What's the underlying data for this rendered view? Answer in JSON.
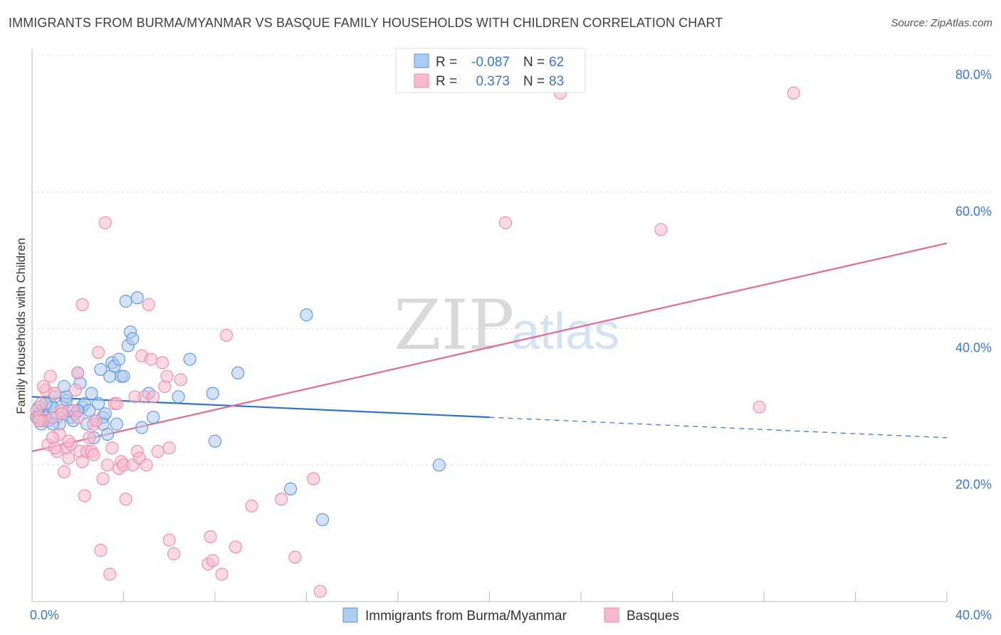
{
  "title": "IMMIGRANTS FROM BURMA/MYANMAR VS BASQUE FAMILY HOUSEHOLDS WITH CHILDREN CORRELATION CHART",
  "source": "Source: ZipAtlas.com",
  "watermark": {
    "zip": "ZIP",
    "atlas": "atlas"
  },
  "legend_top": {
    "rows": [
      {
        "r_label": "R =",
        "r_value": "-0.087",
        "n_label": "N =",
        "n_value": "62",
        "color": "#aecbf0"
      },
      {
        "r_label": "R =",
        "r_value": "0.373",
        "n_label": "N =",
        "n_value": "83",
        "color": "#f7b9cc"
      }
    ]
  },
  "chart_data": {
    "type": "scatter",
    "title": "IMMIGRANTS FROM BURMA/MYANMAR VS BASQUE FAMILY HOUSEHOLDS WITH CHILDREN CORRELATION CHART",
    "xlabel": "",
    "ylabel": "Family Households with Children",
    "xlim": [
      0,
      40
    ],
    "ylim": [
      0,
      80
    ],
    "x_ticks": [
      0,
      40
    ],
    "x_tick_labels": [
      "0.0%",
      "40.0%"
    ],
    "y_ticks": [
      20,
      40,
      60,
      80
    ],
    "y_tick_labels": [
      "20.0%",
      "40.0%",
      "60.0%",
      "80.0%"
    ],
    "grid": true,
    "legend_position": "bottom",
    "series": [
      {
        "name": "Immigrants from Burma/Myanmar",
        "color": "#5b93d8",
        "fill": "#aecbf0",
        "r": -0.087,
        "n": 62,
        "trend": {
          "x0": 0,
          "y0": 30.0,
          "x1": 20,
          "y1": 27.0,
          "x_dash_end": 40,
          "y_dash_end": 24.0,
          "color": "#2f72c9"
        },
        "points": [
          [
            0.3,
            27.5
          ],
          [
            0.4,
            26
          ],
          [
            0.5,
            28
          ],
          [
            0.6,
            27
          ],
          [
            0.7,
            26.5
          ],
          [
            0.8,
            29
          ],
          [
            0.9,
            28.5
          ],
          [
            1.0,
            30
          ],
          [
            1.1,
            27
          ],
          [
            1.2,
            26
          ],
          [
            1.3,
            28
          ],
          [
            1.4,
            31.5
          ],
          [
            1.5,
            29.5
          ],
          [
            1.6,
            28
          ],
          [
            1.7,
            27
          ],
          [
            1.8,
            26.5
          ],
          [
            1.9,
            27.5
          ],
          [
            2.0,
            33.5
          ],
          [
            2.1,
            32
          ],
          [
            2.2,
            28.5
          ],
          [
            2.3,
            29
          ],
          [
            2.4,
            26
          ],
          [
            2.5,
            28
          ],
          [
            2.6,
            30.5
          ],
          [
            2.7,
            24
          ],
          [
            2.8,
            26.5
          ],
          [
            2.9,
            29
          ],
          [
            3.0,
            34
          ],
          [
            3.1,
            27
          ],
          [
            3.2,
            27.5
          ],
          [
            3.3,
            24.5
          ],
          [
            3.4,
            33
          ],
          [
            3.5,
            35
          ],
          [
            3.6,
            34.5
          ],
          [
            3.7,
            26
          ],
          [
            3.8,
            35.5
          ],
          [
            3.9,
            33
          ],
          [
            4.0,
            33
          ],
          [
            4.1,
            44
          ],
          [
            4.2,
            37.5
          ],
          [
            4.3,
            39.5
          ],
          [
            4.4,
            38.5
          ],
          [
            4.6,
            44.5
          ],
          [
            4.8,
            25.5
          ],
          [
            5.1,
            30.5
          ],
          [
            5.3,
            27
          ],
          [
            6.4,
            30
          ],
          [
            6.9,
            35.5
          ],
          [
            7.9,
            30.5
          ],
          [
            8.0,
            23.5
          ],
          [
            9.0,
            33.5
          ],
          [
            11.3,
            16.5
          ],
          [
            12.0,
            42
          ],
          [
            12.7,
            12
          ],
          [
            17.8,
            20
          ],
          [
            0.2,
            27
          ],
          [
            0.3,
            28.5
          ],
          [
            0.6,
            29
          ],
          [
            0.9,
            26
          ],
          [
            1.5,
            30
          ],
          [
            2.0,
            28
          ],
          [
            3.1,
            26
          ]
        ]
      },
      {
        "name": "Basques",
        "color": "#e98aa8",
        "fill": "#f7b9cc",
        "r": 0.373,
        "n": 83,
        "trend": {
          "x0": 0,
          "y0": 22.0,
          "x1": 40,
          "y1": 52.5,
          "color": "#e06b94"
        },
        "points": [
          [
            0.2,
            28
          ],
          [
            0.3,
            27
          ],
          [
            0.4,
            29
          ],
          [
            0.5,
            26.5
          ],
          [
            0.6,
            31
          ],
          [
            0.7,
            23
          ],
          [
            0.8,
            33
          ],
          [
            0.9,
            27
          ],
          [
            1.0,
            30.5
          ],
          [
            1.1,
            22
          ],
          [
            1.2,
            24.5
          ],
          [
            1.3,
            28
          ],
          [
            1.4,
            19
          ],
          [
            1.5,
            22.5
          ],
          [
            1.6,
            21
          ],
          [
            1.7,
            23
          ],
          [
            1.8,
            28
          ],
          [
            1.9,
            31
          ],
          [
            2.0,
            33.5
          ],
          [
            2.1,
            22
          ],
          [
            2.2,
            20.5
          ],
          [
            2.3,
            15.5
          ],
          [
            2.4,
            22
          ],
          [
            2.5,
            24
          ],
          [
            2.6,
            22
          ],
          [
            2.7,
            26
          ],
          [
            2.8,
            26.5
          ],
          [
            2.9,
            36.5
          ],
          [
            3.0,
            7.5
          ],
          [
            3.1,
            18
          ],
          [
            3.2,
            55.5
          ],
          [
            3.3,
            20
          ],
          [
            3.4,
            4
          ],
          [
            3.5,
            22.5
          ],
          [
            3.6,
            29
          ],
          [
            3.8,
            19.5
          ],
          [
            3.9,
            20.5
          ],
          [
            4.0,
            20
          ],
          [
            4.1,
            15
          ],
          [
            4.4,
            20
          ],
          [
            4.6,
            22
          ],
          [
            4.7,
            21
          ],
          [
            4.8,
            36
          ],
          [
            4.9,
            30
          ],
          [
            5.0,
            20
          ],
          [
            5.1,
            43.5
          ],
          [
            5.2,
            35.5
          ],
          [
            5.3,
            30
          ],
          [
            5.5,
            22
          ],
          [
            5.7,
            35
          ],
          [
            5.8,
            31.5
          ],
          [
            5.9,
            33
          ],
          [
            6.0,
            22.5
          ],
          [
            6.0,
            9
          ],
          [
            6.2,
            7
          ],
          [
            6.5,
            32.5
          ],
          [
            7.7,
            5.5
          ],
          [
            7.8,
            9.5
          ],
          [
            7.9,
            6
          ],
          [
            8.3,
            4
          ],
          [
            8.5,
            39
          ],
          [
            8.9,
            8
          ],
          [
            9.6,
            14
          ],
          [
            10.9,
            15
          ],
          [
            11.5,
            6.5
          ],
          [
            12.3,
            18
          ],
          [
            12.6,
            1.5
          ],
          [
            20.7,
            55.5
          ],
          [
            23.1,
            74.5
          ],
          [
            27.5,
            54.5
          ],
          [
            31.8,
            28.5
          ],
          [
            33.3,
            74.5
          ],
          [
            2.2,
            43.5
          ],
          [
            0.9,
            24
          ],
          [
            1.6,
            23.5
          ],
          [
            0.5,
            31.5
          ],
          [
            1.0,
            22.5
          ],
          [
            2.7,
            21.5
          ],
          [
            3.7,
            29
          ],
          [
            4.5,
            30
          ],
          [
            0.3,
            26.5
          ],
          [
            1.3,
            27.5
          ],
          [
            2.0,
            27
          ]
        ]
      }
    ]
  },
  "legend_bottom": {
    "items": [
      {
        "label": "Immigrants from Burma/Myanmar",
        "color": "#aecbf0",
        "stroke": "#5b93d8"
      },
      {
        "label": "Basques",
        "color": "#f7b9cc",
        "stroke": "#e98aa8"
      }
    ]
  }
}
